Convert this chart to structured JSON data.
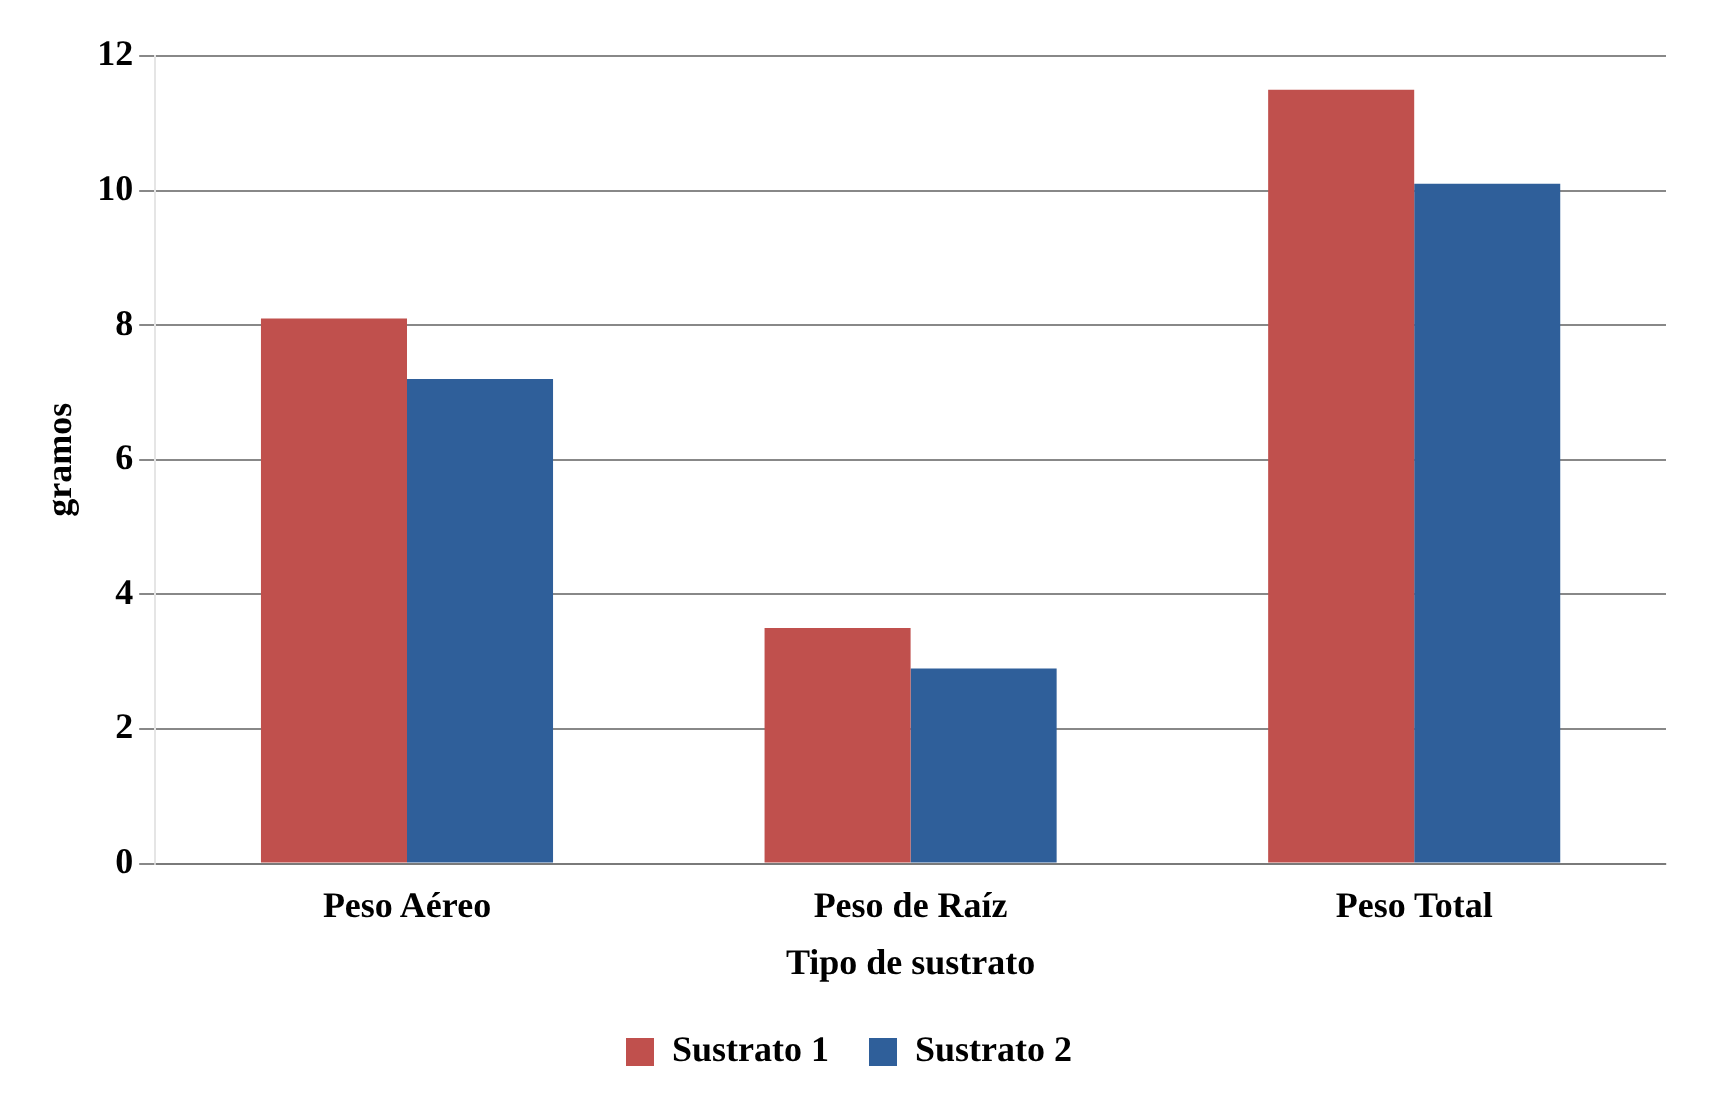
{
  "chart_data": {
    "type": "bar",
    "xlabel": "Tipo de sustrato",
    "ylabel": "gramos",
    "categories": [
      "Peso Aéreo",
      "Peso de Raíz",
      "Peso Total"
    ],
    "series": [
      {
        "name": "Sustrato 1",
        "color": "#c0504d",
        "values": [
          8.1,
          3.5,
          11.5
        ]
      },
      {
        "name": "Sustrato 2",
        "color": "#2f5f9a",
        "values": [
          7.2,
          2.9,
          10.1
        ]
      }
    ],
    "ylim": [
      0,
      12
    ],
    "yticks": [
      0,
      2,
      4,
      6,
      8,
      10,
      12
    ],
    "grid": "y",
    "legend": "bottom"
  }
}
